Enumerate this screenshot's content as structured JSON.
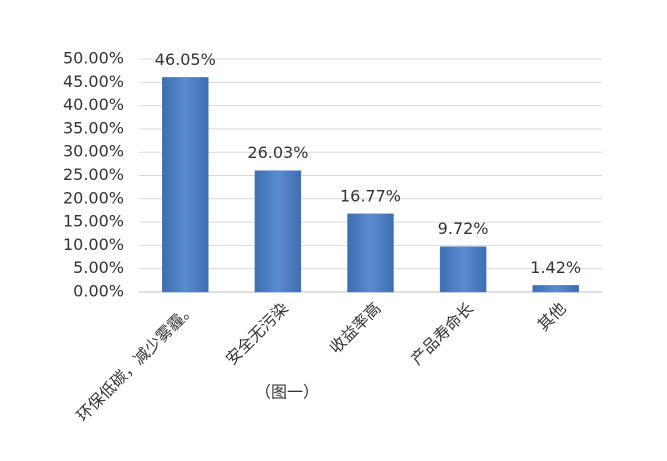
{
  "chart_data": {
    "type": "bar",
    "categories": [
      "环保低碳，减少雾霾。",
      "安全无污染",
      "收益率高",
      "产品寿命长",
      "其他"
    ],
    "values": [
      46.05,
      26.03,
      16.77,
      9.72,
      1.42
    ],
    "value_labels": [
      "46.05%",
      "26.03%",
      "16.77%",
      "9.72%",
      "1.42%"
    ],
    "color": "#4a7ebf",
    "ylim": [
      0,
      50
    ],
    "yticks": [
      {
        "value": 0,
        "label": "0.00%"
      },
      {
        "value": 5,
        "label": "5.00%"
      },
      {
        "value": 10,
        "label": "10.00%"
      },
      {
        "value": 15,
        "label": "15.00%"
      },
      {
        "value": 20,
        "label": "20.00%"
      },
      {
        "value": 25,
        "label": "25.00%"
      },
      {
        "value": 30,
        "label": "30.00%"
      },
      {
        "value": 35,
        "label": "35.00%"
      },
      {
        "value": 40,
        "label": "40.00%"
      },
      {
        "value": 45,
        "label": "45.00%"
      },
      {
        "value": 50,
        "label": "50.00%"
      }
    ],
    "grid": true,
    "caption": "（图一）"
  }
}
